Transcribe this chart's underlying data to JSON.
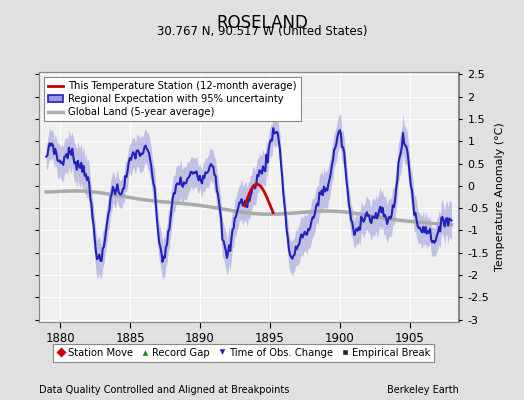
{
  "title": "ROSELAND",
  "subtitle": "30.767 N, 90.517 W (United States)",
  "xlabel_note": "Data Quality Controlled and Aligned at Breakpoints",
  "xlabel_credit": "Berkeley Earth",
  "ylabel": "Temperature Anomaly (°C)",
  "xlim": [
    1878.5,
    1908.5
  ],
  "ylim": [
    -3.05,
    2.55
  ],
  "yticks": [
    -3,
    -2.5,
    -2,
    -1.5,
    -1,
    -0.5,
    0,
    0.5,
    1,
    1.5,
    2,
    2.5
  ],
  "xticks": [
    1880,
    1885,
    1890,
    1895,
    1900,
    1905
  ],
  "bg_color": "#e0e0e0",
  "plot_bg_color": "#f0f0f0",
  "regional_color": "#2222bb",
  "regional_fill_color": "#9999dd",
  "station_color": "#cc0000",
  "global_color": "#aaaaaa",
  "global_lw": 2.5,
  "regional_lw": 1.5,
  "station_lw": 2.0
}
